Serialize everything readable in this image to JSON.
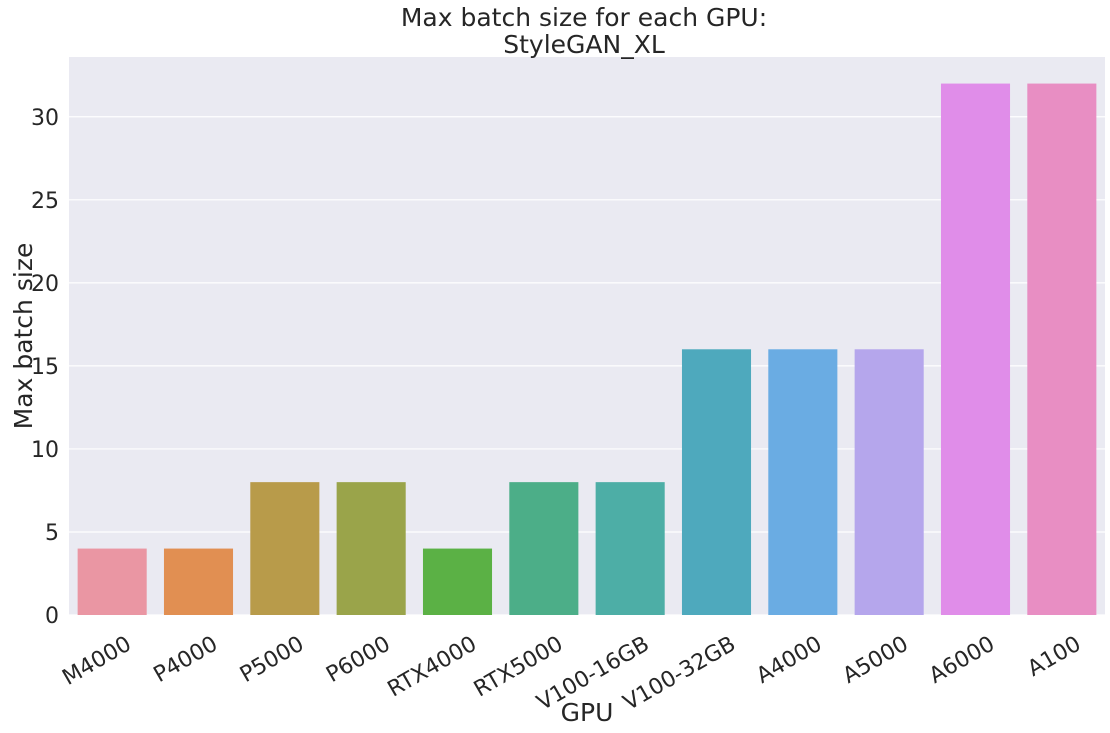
{
  "chart_data": {
    "type": "bar",
    "title_line1": "Max batch size for each GPU:",
    "title_line2": "StyleGAN_XL",
    "xlabel": "GPU",
    "ylabel": "Max batch size",
    "categories": [
      "M4000",
      "P4000",
      "P5000",
      "P6000",
      "RTX4000",
      "RTX5000",
      "V100-16GB",
      "V100-32GB",
      "A4000",
      "A5000",
      "A6000",
      "A100"
    ],
    "values": [
      4,
      4,
      8,
      8,
      4,
      8,
      8,
      16,
      16,
      16,
      32,
      32
    ],
    "colors": [
      "#EA96A3",
      "#E18F52",
      "#B89B4A",
      "#9AA44A",
      "#5BB145",
      "#4CAE88",
      "#4DAEA6",
      "#4EA9BD",
      "#6AACE3",
      "#B5A6EC",
      "#E08DE9",
      "#E88EC3"
    ],
    "ylim": [
      0,
      33.6
    ],
    "yticks": [
      0,
      5,
      10,
      15,
      20,
      25,
      30
    ],
    "grid": true,
    "background": "#EAEAF2",
    "gridline_color": "#FFFFFF"
  }
}
